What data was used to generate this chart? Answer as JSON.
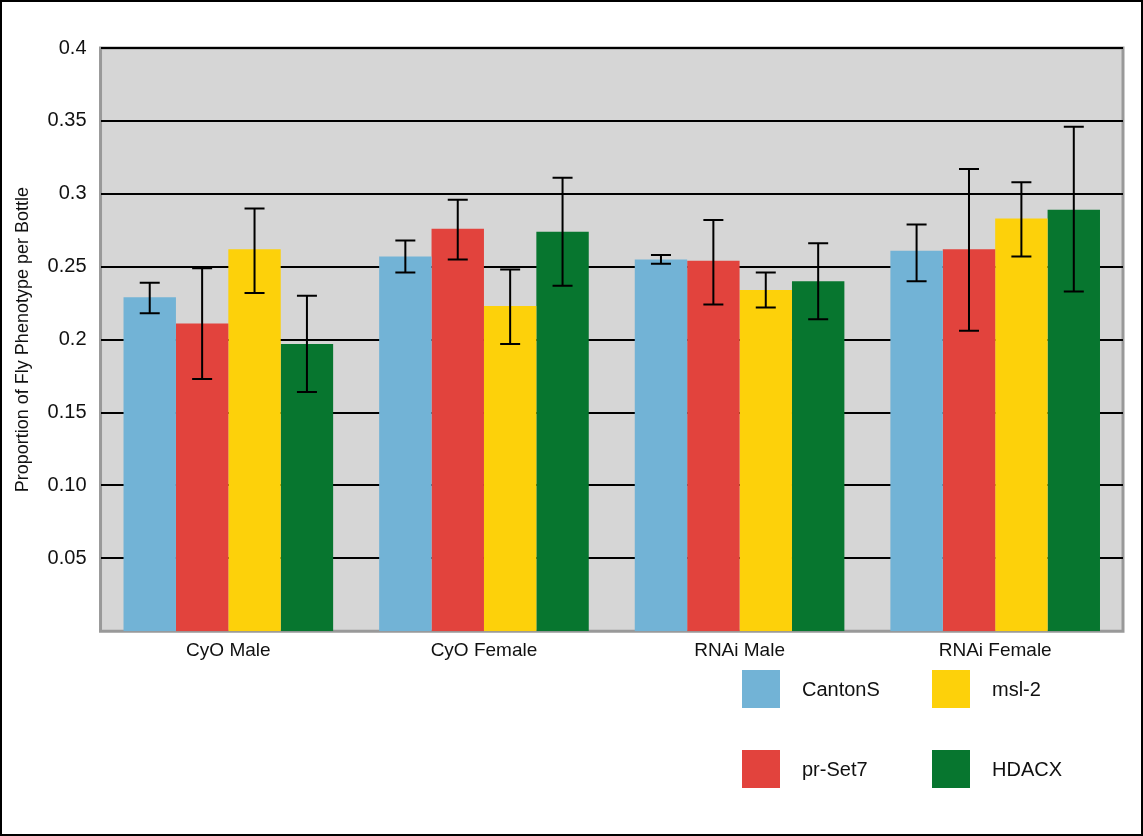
{
  "chart_data": {
    "type": "bar",
    "ylabel": "Proportion of Fly Phenotype per Bottle",
    "categories": [
      "CyO Male",
      "CyO Female",
      "RNAi Male",
      "RNAi Female"
    ],
    "series": [
      {
        "name": "CantonS",
        "color": "#72b3d6",
        "values": [
          0.229,
          0.257,
          0.255,
          0.261
        ],
        "errors": [
          [
            0.218,
            0.239
          ],
          [
            0.246,
            0.268
          ],
          [
            0.252,
            0.258
          ],
          [
            0.24,
            0.279
          ]
        ]
      },
      {
        "name": "pr-Set7",
        "color": "#e2433d",
        "values": [
          0.211,
          0.276,
          0.254,
          0.262
        ],
        "errors": [
          [
            0.173,
            0.249
          ],
          [
            0.255,
            0.296
          ],
          [
            0.224,
            0.282
          ],
          [
            0.206,
            0.317
          ]
        ]
      },
      {
        "name": "msl-2",
        "color": "#fdd10a",
        "values": [
          0.262,
          0.223,
          0.234,
          0.283
        ],
        "errors": [
          [
            0.232,
            0.29
          ],
          [
            0.197,
            0.248
          ],
          [
            0.222,
            0.246
          ],
          [
            0.257,
            0.308
          ]
        ]
      },
      {
        "name": "HDACX",
        "color": "#07762f",
        "values": [
          0.197,
          0.274,
          0.24,
          0.289
        ],
        "errors": [
          [
            0.164,
            0.23
          ],
          [
            0.237,
            0.311
          ],
          [
            0.214,
            0.266
          ],
          [
            0.233,
            0.346
          ]
        ]
      }
    ],
    "ylim": [
      0,
      0.4
    ],
    "yticks": [
      0.05,
      {
        "value": 0.1,
        "label": "0.10"
      },
      0.15,
      0.2,
      0.25,
      0.3,
      0.35,
      0.4
    ],
    "grid": "y",
    "legend": "bottom right"
  }
}
